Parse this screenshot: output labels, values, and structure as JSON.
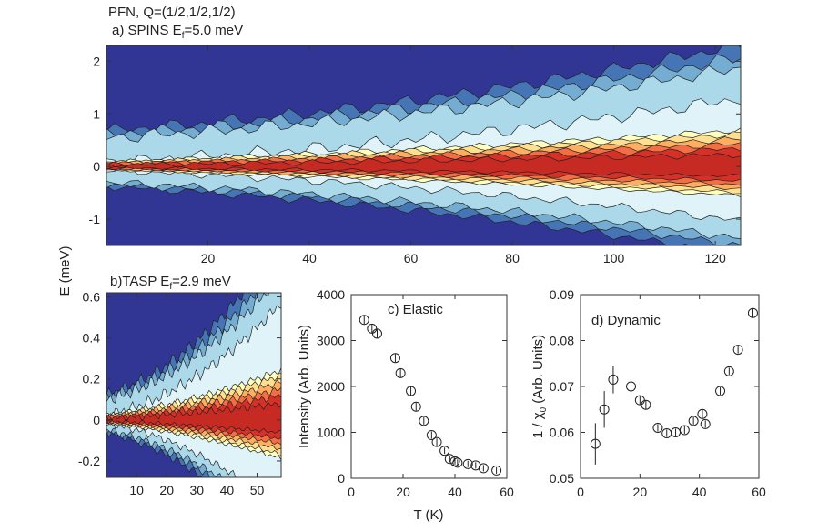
{
  "figure": {
    "title_line1": "PFN, Q=(1/2,1/2,1/2)",
    "shared_ylabel": "E (meV)",
    "shared_xlabel": "T (K)"
  },
  "chart_data": [
    {
      "type": "contour",
      "panel": "a",
      "title": "a) SPINS E",
      "title_sub": "f",
      "title_rest": "=5.0 meV",
      "xlim": [
        0,
        125
      ],
      "ylim": [
        -1.5,
        2.3
      ],
      "xticks": [
        "20",
        "40",
        "60",
        "80",
        "100",
        "120"
      ],
      "xtick_values": [
        20,
        40,
        60,
        80,
        100,
        120
      ],
      "yticks": [
        "-1",
        "0",
        "1",
        "2"
      ],
      "ytick_values": [
        -1,
        0,
        1,
        2
      ],
      "peak_energy": 0,
      "colormap": "RdYlBu_r"
    },
    {
      "type": "contour",
      "panel": "b",
      "title": "b)TASP E",
      "title_sub": "f",
      "title_rest": "=2.9 meV",
      "xlim": [
        0,
        58
      ],
      "ylim": [
        -0.28,
        0.62
      ],
      "xticks": [
        "10",
        "20",
        "30",
        "40",
        "50"
      ],
      "xtick_values": [
        10,
        20,
        30,
        40,
        50
      ],
      "yticks": [
        "-0.2",
        "0",
        "0.2",
        "0.4",
        "0.6"
      ],
      "ytick_values": [
        -0.2,
        0,
        0.2,
        0.4,
        0.6
      ],
      "peak_energy": 0,
      "colormap": "RdYlBu_r"
    },
    {
      "type": "scatter",
      "panel": "c",
      "title": "c) Elastic",
      "xlabel": "T (K)",
      "ylabel": "Intensity (Arb. Units)",
      "xlim": [
        0,
        60
      ],
      "ylim": [
        0,
        4000
      ],
      "xticks": [
        "0",
        "20",
        "40",
        "60"
      ],
      "xtick_values": [
        0,
        20,
        40,
        60
      ],
      "yticks": [
        "0",
        "1000",
        "2000",
        "3000",
        "4000"
      ],
      "ytick_values": [
        0,
        1000,
        2000,
        3000,
        4000
      ],
      "x": [
        5,
        8,
        10,
        17,
        19,
        23,
        25,
        28,
        31,
        33,
        36,
        38,
        40,
        41,
        45,
        48,
        51,
        56
      ],
      "y": [
        3450,
        3260,
        3150,
        2620,
        2290,
        1900,
        1560,
        1250,
        940,
        790,
        600,
        420,
        370,
        340,
        310,
        280,
        220,
        170
      ],
      "err": [
        90,
        90,
        90,
        90,
        90,
        90,
        90,
        80,
        80,
        80,
        70,
        70,
        70,
        70,
        70,
        70,
        70,
        70
      ]
    },
    {
      "type": "scatter",
      "panel": "d",
      "title": "d) Dynamic",
      "xlabel": "T (K)",
      "ylabel": "1 / χ",
      "ylabel_sub": "0",
      "ylabel_rest": " (Arb. Units)",
      "xlim": [
        0,
        60
      ],
      "ylim": [
        0.05,
        0.09
      ],
      "xticks": [
        "0",
        "20",
        "40",
        "60"
      ],
      "xtick_values": [
        0,
        20,
        40,
        60
      ],
      "yticks": [
        "0.05",
        "0.06",
        "0.07",
        "0.08",
        "0.09"
      ],
      "ytick_values": [
        0.05,
        0.06,
        0.07,
        0.08,
        0.09
      ],
      "x": [
        5,
        8,
        11,
        17,
        20,
        22,
        26,
        29,
        32,
        35,
        38,
        41,
        42,
        47,
        50,
        53,
        58
      ],
      "y": [
        0.0575,
        0.065,
        0.0715,
        0.07,
        0.067,
        0.066,
        0.061,
        0.0598,
        0.06,
        0.0605,
        0.0625,
        0.064,
        0.0618,
        0.069,
        0.0733,
        0.078,
        0.086
      ],
      "err": [
        0.0045,
        0.004,
        0.003,
        0.0015,
        0.001,
        0.001,
        0.0008,
        0.0008,
        0.0008,
        0.0008,
        0.0008,
        0.001,
        0.0008,
        0.0008,
        0.0008,
        0.0008,
        0.001
      ]
    }
  ]
}
